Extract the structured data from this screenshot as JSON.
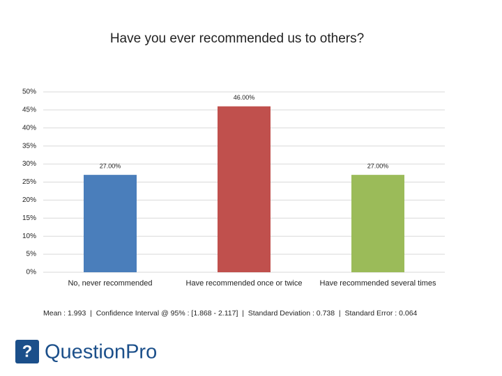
{
  "chart_data": {
    "type": "bar",
    "title": "Have you ever recommended us to others?",
    "categories": [
      "No, never recommended",
      "Have recommended once or twice",
      "Have recommended several times"
    ],
    "values": [
      27,
      46,
      27
    ],
    "value_labels": [
      "27.00%",
      "46.00%",
      "27.00%"
    ],
    "colors": [
      "#4a7ebb",
      "#c0504d",
      "#9bbb59"
    ],
    "ylim": [
      0,
      50
    ],
    "yticks": [
      {
        "value": 0,
        "label": "0%"
      },
      {
        "value": 5,
        "label": "5%"
      },
      {
        "value": 10,
        "label": "10%"
      },
      {
        "value": 15,
        "label": "15%"
      },
      {
        "value": 20,
        "label": "20%"
      },
      {
        "value": 25,
        "label": "25%"
      },
      {
        "value": 30,
        "label": "30%"
      },
      {
        "value": 35,
        "label": "35%"
      },
      {
        "value": 40,
        "label": "40%"
      },
      {
        "value": 45,
        "label": "45%"
      },
      {
        "value": 50,
        "label": "50%"
      }
    ],
    "grid": true,
    "annotation": "Mean : 1.993  |  Confidence Interval @ 95% : [1.868 - 2.117]  |  Standard Deviation : 0.738  |  Standard Error : 0.064"
  },
  "footer": {
    "logo": "QuestionPro"
  }
}
